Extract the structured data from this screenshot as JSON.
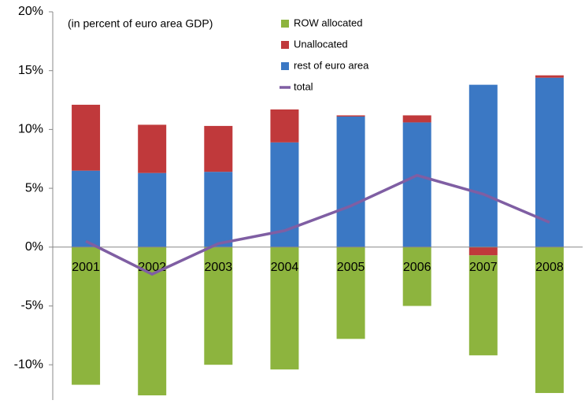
{
  "chart_data": {
    "type": "stacked_bar_line",
    "annotation": "(in percent of euro area GDP)",
    "categories": [
      "2001",
      "2002",
      "2003",
      "2004",
      "2005",
      "2006",
      "2007",
      "2008"
    ],
    "series": [
      {
        "name": "ROW allocated",
        "color": "#8db43e",
        "type": "bar",
        "values": [
          -11.7,
          -12.6,
          -10.0,
          -10.4,
          -7.8,
          -5.0,
          -8.5,
          -12.4
        ]
      },
      {
        "name": "Unallocated",
        "color": "#c0393b",
        "type": "bar",
        "values": [
          5.6,
          4.1,
          3.9,
          2.8,
          0.1,
          0.6,
          -0.7,
          0.2
        ]
      },
      {
        "name": "rest of euro area",
        "color": "#3b78c4",
        "type": "bar",
        "values": [
          6.5,
          6.3,
          6.4,
          8.9,
          11.1,
          10.6,
          13.8,
          14.4
        ]
      },
      {
        "name": "total",
        "color": "#7f5ea3",
        "type": "line",
        "values": [
          0.5,
          -2.3,
          0.3,
          1.4,
          3.5,
          6.1,
          4.5,
          2.1
        ]
      }
    ],
    "ylim": [
      -13,
      20
    ],
    "yticks": [
      {
        "value": -10,
        "label": "-10%"
      },
      {
        "value": -5,
        "label": "-5%"
      },
      {
        "value": 0,
        "label": "0%"
      },
      {
        "value": 5,
        "label": "5%"
      },
      {
        "value": 10,
        "label": "10%"
      },
      {
        "value": 15,
        "label": "15%"
      },
      {
        "value": 20,
        "label": "20%"
      }
    ],
    "grid": false
  }
}
